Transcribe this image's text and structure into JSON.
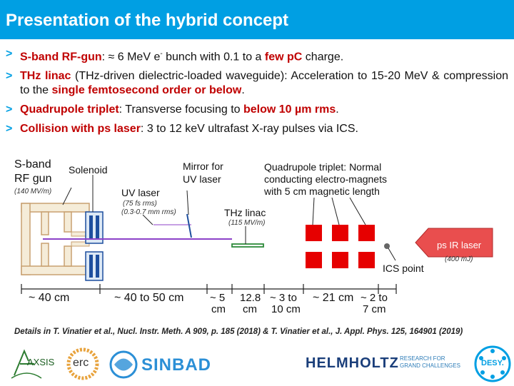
{
  "header": {
    "title": "Presentation of the hybrid concept"
  },
  "bullets": [
    {
      "lead": "S-band RF-gun",
      "p1": ": ≈ 6 MeV e",
      "sup": "-",
      "p2": " bunch with 0.1 to a ",
      "hl": "few pC",
      "p3": " charge."
    },
    {
      "lead": "THz linac",
      "p1": " (THz-driven dielectric-loaded waveguide): Acceleration to 15-20 MeV & compression to the ",
      "hl": "single femtosecond order or below",
      "p2": "."
    },
    {
      "lead": "Quadrupole triplet",
      "p1": ": Transverse focusing to ",
      "hl": "below 10 µm rms",
      "p2": "."
    },
    {
      "lead": "Collision with ps laser",
      "p1": ": 3 to 12 keV ultrafast X-ray pulses via ICS."
    }
  ],
  "diagram": {
    "gun_label_1": "S-band",
    "gun_label_2": "RF gun",
    "gun_sub": "(140 MV/m)",
    "solenoid": "Solenoid",
    "mirror_1": "Mirror for",
    "mirror_2": "UV laser",
    "uv_1": "UV laser",
    "uv_2": "(75 fs rms)",
    "uv_3": "(0.3-0.7 mm rms)",
    "thz_1": "THz linac",
    "thz_2": "(115 MV/m)",
    "quad_1": "Quadrupole triplet: Normal",
    "quad_2": "conducting electro-magnets",
    "quad_3": "with 5 cm magnetic length",
    "laser_1": "ps IR laser",
    "laser_2": "(400 mJ)",
    "ics": "ICS point",
    "dims": [
      {
        "line1": "~ 40 cm",
        "line2": ""
      },
      {
        "line1": "~ 40 to 50 cm",
        "line2": ""
      },
      {
        "line1": "~ 5",
        "line2": "cm"
      },
      {
        "line1": "12.8",
        "line2": "cm"
      },
      {
        "line1": "~ 3 to",
        "line2": "10 cm"
      },
      {
        "line1": "~ 21 cm",
        "line2": ""
      },
      {
        "line1": "~ 2 to",
        "line2": "7 cm"
      }
    ]
  },
  "footnote": "Details in T. Vinatier et al., Nucl. Instr. Meth. A 909, p. 185 (2018) & T. Vinatier et al., J. Appl. Phys. 125, 164901 (2019)",
  "logos": {
    "axsis": "AXSIS",
    "erc": "erc",
    "sinbad": "SINBAD",
    "helmholtz": "HELMHOLTZ",
    "helmholtz_sub_1": "RESEARCH FOR",
    "helmholtz_sub_2": "GRAND CHALLENGES",
    "desy": "DESY."
  },
  "colors": {
    "title_bar": "#009fe3",
    "highlight": "#c00000",
    "magnet": "#e60000",
    "beam": "#8c42c8",
    "arrow": "#e94e4e",
    "thz": "#2e8b3a",
    "solenoid": "#1d4e9e"
  }
}
